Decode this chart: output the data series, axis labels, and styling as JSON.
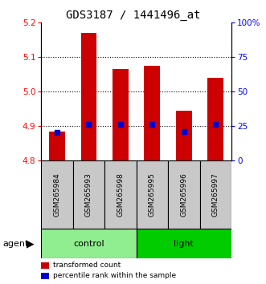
{
  "title": "GDS3187 / 1441496_at",
  "samples": [
    "GSM265984",
    "GSM265993",
    "GSM265998",
    "GSM265995",
    "GSM265996",
    "GSM265997"
  ],
  "bar_values": [
    4.885,
    5.17,
    5.065,
    5.075,
    4.945,
    5.04
  ],
  "percentile_values": [
    4.882,
    4.905,
    4.905,
    4.905,
    4.885,
    4.905
  ],
  "bar_bottom": 4.8,
  "ylim": [
    4.8,
    5.2
  ],
  "right_ylim": [
    0,
    100
  ],
  "right_yticks": [
    0,
    25,
    50,
    75,
    100
  ],
  "right_yticklabels": [
    "0",
    "25",
    "50",
    "75",
    "100%"
  ],
  "left_yticks": [
    4.8,
    4.9,
    5.0,
    5.1,
    5.2
  ],
  "grid_lines": [
    4.9,
    5.0,
    5.1
  ],
  "bar_color": "#CC0000",
  "blue_color": "#0000CC",
  "control_color": "#90EE90",
  "light_color": "#00CC00",
  "agent_label": "agent",
  "legend_items": [
    {
      "color": "#CC0000",
      "label": "transformed count"
    },
    {
      "color": "#0000CC",
      "label": "percentile rank within the sample"
    }
  ],
  "title_fontsize": 10,
  "tick_fontsize": 7.5,
  "label_fontsize": 6.5,
  "bar_width": 0.5
}
